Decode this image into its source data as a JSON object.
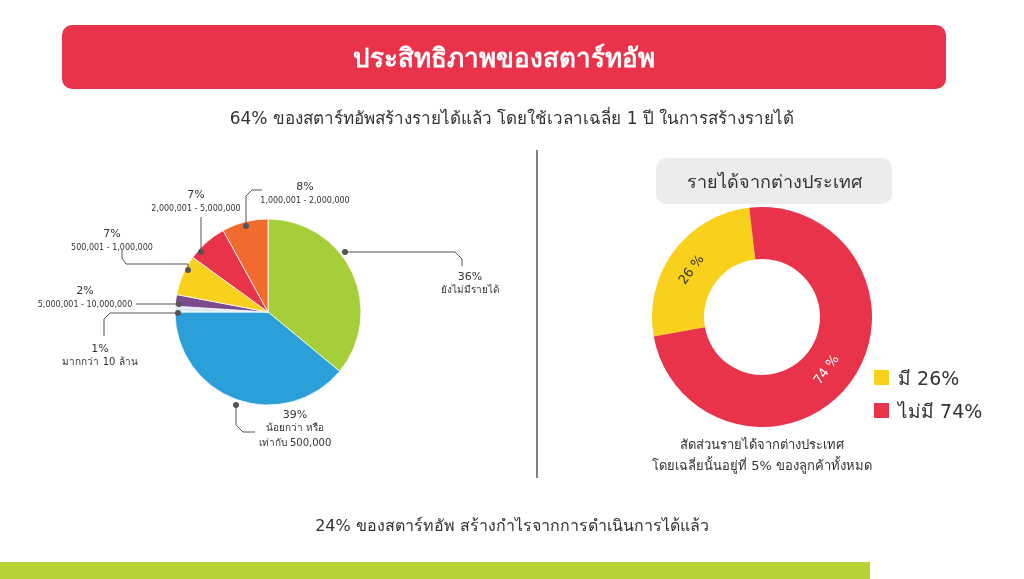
{
  "chart_data": [
    {
      "type": "pie",
      "title": "ประสิทธิภาพของสตาร์ทอัพ",
      "subtitle": "64% ของสตาร์ทอัพสร้างรายได้แล้ว โดยใช้เวลาเฉลี่ย 1 ปี ในการสร้างรายได้",
      "categories": [
        "ยังไม่มีรายได้",
        "น้อยกว่า หรือ เท่ากับ 500,000",
        "มากกว่า 10 ล้าน",
        "5,000,001 - 10,000,000",
        "500,001 - 1,000,000",
        "2,000,001 - 5,000,000",
        "1,000,001 - 2,000,000"
      ],
      "values": [
        36,
        39,
        1,
        2,
        7,
        7,
        8
      ],
      "value_labels": [
        "36%",
        "39%",
        "1%",
        "2%",
        "7%",
        "7%",
        "8%"
      ],
      "colors": [
        "#a6ce39",
        "#2a9fd8",
        "#dfe9f1",
        "#7b4a8f",
        "#f9d01c",
        "#e8334a",
        "#f26b2e"
      ],
      "annotations": [
        "24% ของสตาร์ทอัพ สร้างกำไรจากการดำเนินการได้แล้ว"
      ]
    },
    {
      "type": "donut",
      "title": "รายได้จากต่างประเทศ",
      "categories": [
        "มี 26%",
        "ไม่มี 74%"
      ],
      "values": [
        26,
        74
      ],
      "value_labels": [
        "26 %",
        "74 %"
      ],
      "colors": [
        "#f9d01c",
        "#e8334a"
      ],
      "legend": "right",
      "annotations": [
        "สัดส่วนรายได้จากต่างประเทศ",
        "โดยเฉลี่ยนั้นอยู่ที่ 5% ของลูกค้าทั้งหมด"
      ]
    }
  ]
}
